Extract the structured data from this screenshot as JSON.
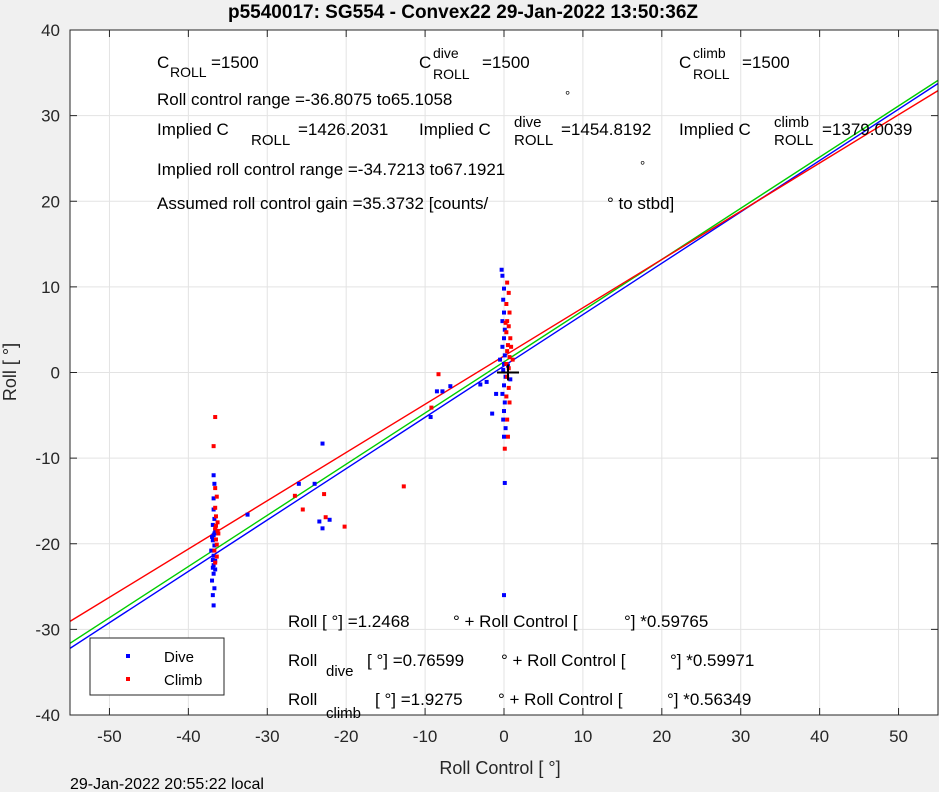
{
  "chart_data": {
    "type": "scatter",
    "title": "p5540017: SG554 - Convex22 29-Jan-2022 13:50:36Z",
    "xlabel": "Roll Control [   °]",
    "ylabel": "Roll [  °]",
    "footer": "29-Jan-2022 20:55:22 local",
    "xlim": [
      -55,
      55
    ],
    "ylim": [
      -40,
      40
    ],
    "xticks": [
      -50,
      -40,
      -30,
      -20,
      -10,
      0,
      10,
      20,
      30,
      40,
      50
    ],
    "yticks": [
      -40,
      -30,
      -20,
      -10,
      0,
      10,
      20,
      30,
      40
    ],
    "grid": true,
    "legend_position": "bottom-left",
    "series": [
      {
        "name": "Dive",
        "color": "#0000ff",
        "points": [
          [
            -36.8,
            -27.2
          ],
          [
            -36.9,
            -26.0
          ],
          [
            -36.7,
            -25.2
          ],
          [
            -37.0,
            -24.3
          ],
          [
            -36.8,
            -23.5
          ],
          [
            -36.9,
            -22.8
          ],
          [
            -36.6,
            -22.0
          ],
          [
            -36.8,
            -21.4
          ],
          [
            -37.1,
            -20.8
          ],
          [
            -36.7,
            -20.2
          ],
          [
            -36.9,
            -19.6
          ],
          [
            -36.8,
            -19.0
          ],
          [
            -36.6,
            -18.4
          ],
          [
            -36.9,
            -17.8
          ],
          [
            -36.7,
            -17.1
          ],
          [
            -36.8,
            -16.0
          ],
          [
            -36.8,
            -14.7
          ],
          [
            -36.7,
            -13.0
          ],
          [
            -36.8,
            -12.0
          ],
          [
            -36.9,
            -21.9
          ],
          [
            -36.6,
            -23.0
          ],
          [
            -36.8,
            -22.5
          ],
          [
            -37.0,
            -19.2
          ],
          [
            -36.7,
            -18.8
          ],
          [
            -23.0,
            -8.3
          ],
          [
            -23.4,
            -17.4
          ],
          [
            -23.0,
            -18.2
          ],
          [
            -22.1,
            -17.2
          ],
          [
            -24.0,
            -13.0
          ],
          [
            -26.0,
            -13.0
          ],
          [
            -32.5,
            -16.6
          ],
          [
            -9.3,
            -5.2
          ],
          [
            -8.5,
            -2.2
          ],
          [
            -7.8,
            -2.2
          ],
          [
            -6.8,
            -1.6
          ],
          [
            -3.0,
            -1.4
          ],
          [
            -2.2,
            -1.1
          ],
          [
            -1.5,
            -4.8
          ],
          [
            -1.0,
            -2.5
          ],
          [
            -0.3,
            12.0
          ],
          [
            -0.2,
            11.3
          ],
          [
            0.0,
            9.8
          ],
          [
            -0.1,
            8.5
          ],
          [
            0.0,
            7.0
          ],
          [
            -0.2,
            6.0
          ],
          [
            0.1,
            5.0
          ],
          [
            0.0,
            4.0
          ],
          [
            -0.2,
            3.0
          ],
          [
            0.1,
            2.0
          ],
          [
            0.0,
            1.0
          ],
          [
            -0.1,
            0.3
          ],
          [
            0.2,
            -0.5
          ],
          [
            0.0,
            -1.5
          ],
          [
            -0.2,
            -2.5
          ],
          [
            0.1,
            -3.5
          ],
          [
            0.0,
            -4.5
          ],
          [
            -0.1,
            -5.5
          ],
          [
            0.2,
            -6.5
          ],
          [
            0.0,
            -7.5
          ],
          [
            0.1,
            -12.9
          ],
          [
            0.0,
            -26.0
          ],
          [
            0.5,
            0.8
          ],
          [
            0.8,
            -0.8
          ],
          [
            -0.5,
            1.5
          ]
        ]
      },
      {
        "name": "Climb",
        "color": "#ff0000",
        "points": [
          [
            -36.6,
            -5.2
          ],
          [
            -36.8,
            -8.6
          ],
          [
            -36.6,
            -13.5
          ],
          [
            -36.4,
            -14.5
          ],
          [
            -36.6,
            -15.8
          ],
          [
            -36.5,
            -16.8
          ],
          [
            -36.3,
            -17.5
          ],
          [
            -36.6,
            -18.2
          ],
          [
            -36.2,
            -18.8
          ],
          [
            -36.5,
            -19.5
          ],
          [
            -36.4,
            -20.1
          ],
          [
            -36.7,
            -20.8
          ],
          [
            -36.4,
            -21.5
          ],
          [
            -36.6,
            -22.2
          ],
          [
            -36.3,
            -18.5
          ],
          [
            -36.5,
            -17.9
          ],
          [
            -26.5,
            -14.4
          ],
          [
            -25.5,
            -16.0
          ],
          [
            -22.8,
            -14.2
          ],
          [
            -22.6,
            -16.9
          ],
          [
            -20.2,
            -18.0
          ],
          [
            -12.7,
            -13.3
          ],
          [
            -8.3,
            -0.2
          ],
          [
            -9.2,
            -4.1
          ],
          [
            0.4,
            10.5
          ],
          [
            0.6,
            9.3
          ],
          [
            0.3,
            8.0
          ],
          [
            0.7,
            7.0
          ],
          [
            0.4,
            6.0
          ],
          [
            0.6,
            5.4
          ],
          [
            0.3,
            4.7
          ],
          [
            0.8,
            4.0
          ],
          [
            0.5,
            3.2
          ],
          [
            0.4,
            2.5
          ],
          [
            0.7,
            1.8
          ],
          [
            0.3,
            1.0
          ],
          [
            0.6,
            0.5
          ],
          [
            0.4,
            -0.5
          ],
          [
            0.6,
            -1.8
          ],
          [
            0.3,
            -2.8
          ],
          [
            0.7,
            -3.5
          ],
          [
            0.4,
            -5.5
          ],
          [
            0.5,
            -7.5
          ],
          [
            0.1,
            -8.9
          ],
          [
            0.9,
            3.0
          ],
          [
            1.1,
            1.5
          ],
          [
            0.2,
            5.8
          ]
        ]
      }
    ],
    "fit_lines": [
      {
        "name": "Roll",
        "color": "#00cc00",
        "intercept": 1.2468,
        "slope": 0.59765
      },
      {
        "name": "Roll dive",
        "color": "#0000ff",
        "intercept": 0.76599,
        "slope": 0.59971
      },
      {
        "name": "Roll climb",
        "color": "#ff0000",
        "intercept": 1.9275,
        "slope": 0.56349
      }
    ],
    "annotations": {
      "c_roll": {
        "main": "C",
        "sub": "ROLL",
        "value": "=1500"
      },
      "c_roll_dive": {
        "main": "C",
        "sup": "dive",
        "sub": "ROLL",
        "value": "=1500"
      },
      "c_roll_climb": {
        "main": "C",
        "sup": "climb",
        "sub": "ROLL",
        "value": "=1500"
      },
      "roll_control_range": "Roll control range =-36.8075 to65.1058",
      "degree_mark": "°",
      "implied_c_roll": {
        "prefix": "Implied C",
        "sub": "ROLL",
        "value": "=1426.2031"
      },
      "implied_c_roll_dive": {
        "prefix": "Implied C",
        "sup": "dive",
        "sub": "ROLL",
        "value": "=1454.8192"
      },
      "implied_c_roll_climb": {
        "prefix": "Implied C",
        "sup": "climb",
        "sub": "ROLL",
        "value": "=1379.0039"
      },
      "implied_range": "Implied roll control range =-34.7213 to67.1921",
      "assumed_gain": "Assumed roll control gain =35.3732 [counts/",
      "assumed_gain_suffix": "° to stbd]",
      "eq_roll": {
        "a": "Roll [  °] =1.2468",
        "b": "° + Roll Control [",
        "c": "°] *0.59765"
      },
      "eq_dive": {
        "main": "Roll",
        "sub": "dive",
        "a": "[  °] =0.76599",
        "b": "° + Roll Control [",
        "c": "°] *0.59971"
      },
      "eq_climb": {
        "main": "Roll",
        "sub": "climb",
        "a": "[  °] =1.9275",
        "b": "° + Roll Control [",
        "c": "°] *0.56349"
      }
    },
    "legend": [
      {
        "label": "Dive",
        "color": "#0000ff"
      },
      {
        "label": "Climb",
        "color": "#ff0000"
      }
    ]
  }
}
